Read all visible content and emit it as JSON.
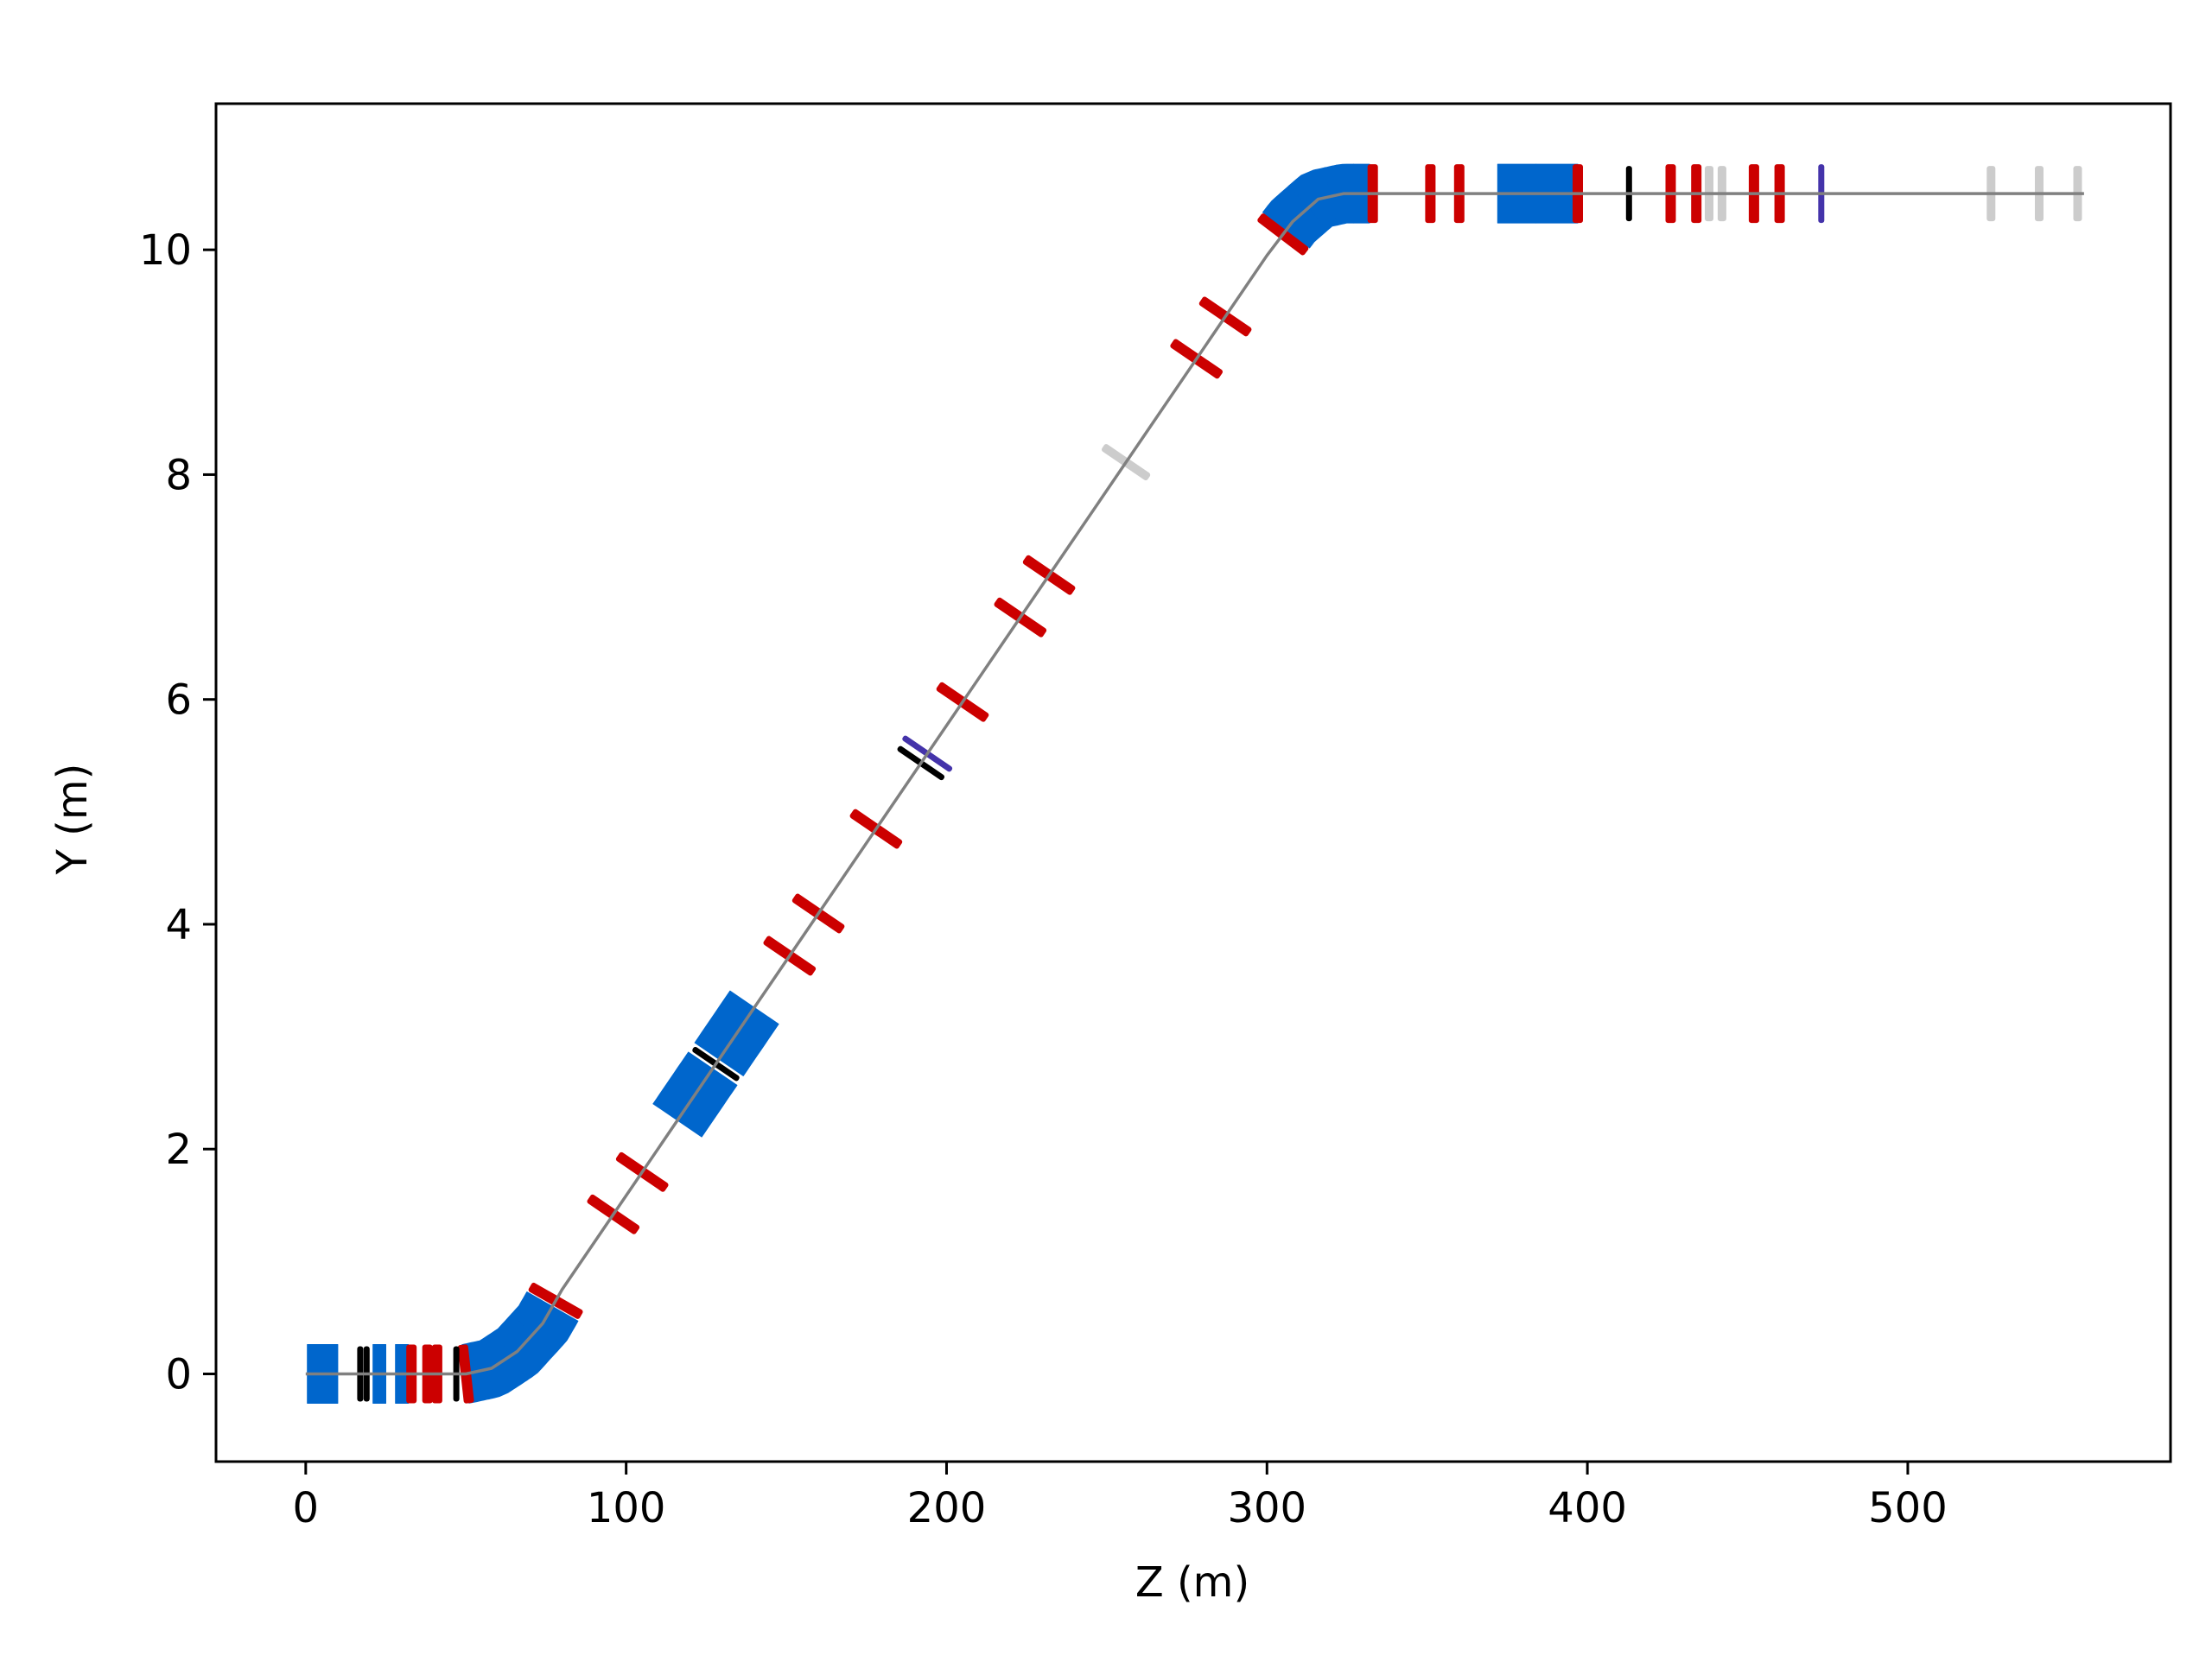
{
  "chart_data": {
    "type": "line",
    "title": "",
    "xlabel": "Z (m)",
    "ylabel": "Y (m)",
    "xlim": [
      -28,
      582
    ],
    "ylim": [
      -0.78,
      11.3
    ],
    "xticks": [
      0,
      100,
      200,
      300,
      400,
      500
    ],
    "yticks": [
      0,
      2,
      4,
      6,
      8,
      10
    ],
    "grid": false,
    "legend": "none",
    "beamline": {
      "name": "",
      "color": "#808080",
      "z": [
        0,
        50,
        58,
        66,
        74,
        80,
        300,
        308,
        316,
        324,
        332,
        555
      ],
      "y": [
        0,
        0,
        0.05,
        0.2,
        0.45,
        0.75,
        9.95,
        10.25,
        10.45,
        10.5,
        10.5,
        10.5
      ]
    },
    "element_types": {
      "bend": "#0066cc",
      "quadrupole": "#cc0000",
      "kicker": "#000000",
      "corrector": "#4433aa",
      "marker": "#cccccc"
    },
    "elements": [
      {
        "type": "bend",
        "z_start": 0.5,
        "z_end": 10
      },
      {
        "type": "bend",
        "z_start": 21,
        "z_end": 25
      },
      {
        "type": "bend",
        "z_start": 28,
        "z_end": 32
      },
      {
        "type": "bend",
        "z_start": 50,
        "z_end": 57
      },
      {
        "type": "bend",
        "z_start": 57,
        "z_end": 64
      },
      {
        "type": "bend",
        "z_start": 64,
        "z_end": 71
      },
      {
        "type": "bend",
        "z_start": 71,
        "z_end": 77
      },
      {
        "type": "bend",
        "z_start": 116,
        "z_end": 127
      },
      {
        "type": "bend",
        "z_start": 129,
        "z_end": 140
      },
      {
        "type": "bend",
        "z_start": 306,
        "z_end": 313
      },
      {
        "type": "bend",
        "z_start": 313,
        "z_end": 320
      },
      {
        "type": "bend",
        "z_start": 320,
        "z_end": 327
      },
      {
        "type": "bend",
        "z_start": 327,
        "z_end": 332
      },
      {
        "type": "bend",
        "z_start": 372,
        "z_end": 384
      },
      {
        "type": "bend",
        "z_start": 384,
        "z_end": 397
      },
      {
        "type": "quadrupole",
        "z": 33
      },
      {
        "type": "quadrupole",
        "z": 38
      },
      {
        "type": "quadrupole",
        "z": 41
      },
      {
        "type": "quadrupole",
        "z": 50
      },
      {
        "type": "quadrupole",
        "z": 78
      },
      {
        "type": "quadrupole",
        "z": 96
      },
      {
        "type": "quadrupole",
        "z": 105
      },
      {
        "type": "quadrupole",
        "z": 151
      },
      {
        "type": "quadrupole",
        "z": 160
      },
      {
        "type": "quadrupole",
        "z": 178
      },
      {
        "type": "quadrupole",
        "z": 205
      },
      {
        "type": "quadrupole",
        "z": 223
      },
      {
        "type": "quadrupole",
        "z": 232
      },
      {
        "type": "quadrupole",
        "z": 278
      },
      {
        "type": "quadrupole",
        "z": 287
      },
      {
        "type": "quadrupole",
        "z": 305
      },
      {
        "type": "quadrupole",
        "z": 333
      },
      {
        "type": "quadrupole",
        "z": 351
      },
      {
        "type": "quadrupole",
        "z": 360
      },
      {
        "type": "quadrupole",
        "z": 397
      },
      {
        "type": "quadrupole",
        "z": 426
      },
      {
        "type": "quadrupole",
        "z": 434
      },
      {
        "type": "quadrupole",
        "z": 452
      },
      {
        "type": "quadrupole",
        "z": 460
      },
      {
        "type": "kicker",
        "z": 17
      },
      {
        "type": "kicker",
        "z": 19
      },
      {
        "type": "kicker",
        "z": 47
      },
      {
        "type": "kicker",
        "z": 128
      },
      {
        "type": "kicker",
        "z": 192
      },
      {
        "type": "kicker",
        "z": 413
      },
      {
        "type": "corrector",
        "z": 194
      },
      {
        "type": "corrector",
        "z": 473
      },
      {
        "type": "marker",
        "z": 256
      },
      {
        "type": "marker",
        "z": 438
      },
      {
        "type": "marker",
        "z": 442
      },
      {
        "type": "marker",
        "z": 526
      },
      {
        "type": "marker",
        "z": 541
      },
      {
        "type": "marker",
        "z": 553
      }
    ]
  }
}
